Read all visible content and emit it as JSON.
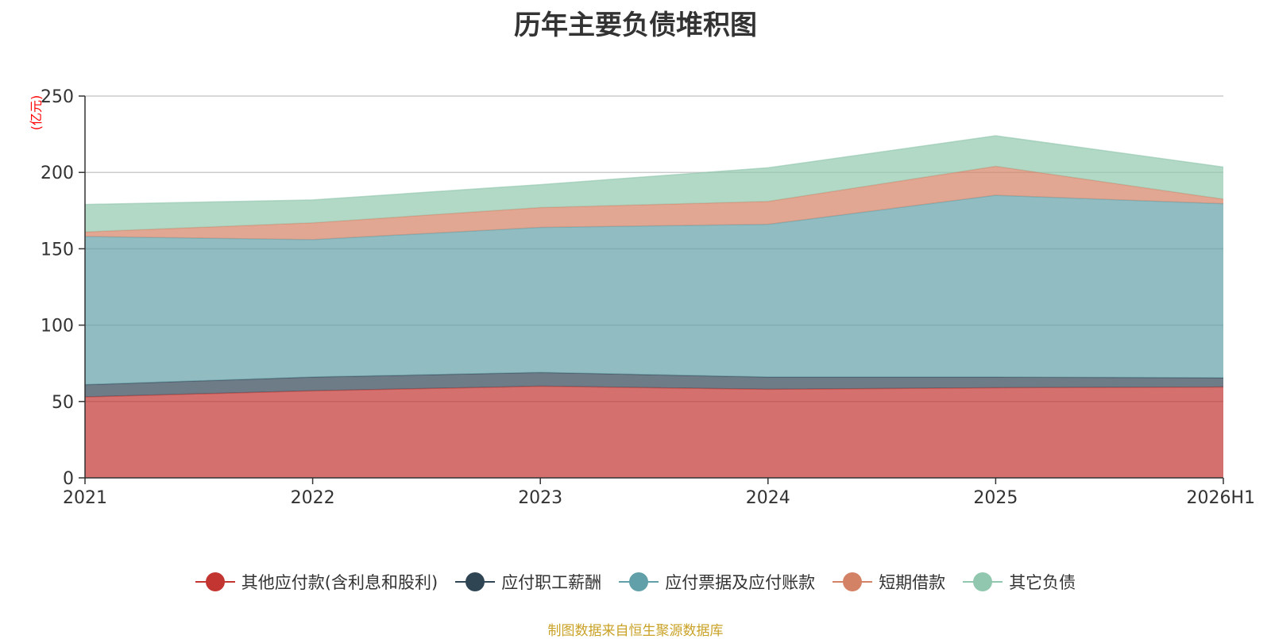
{
  "title": "历年主要负债堆积图",
  "source_note": "制图数据来自恒生聚源数据库",
  "chart_data": {
    "type": "area",
    "stacked": true,
    "title": "历年主要负债堆积图",
    "ylabel": "(亿元)",
    "xlabel": "",
    "ylim": [
      0,
      250
    ],
    "yticks": [
      0,
      50,
      100,
      150,
      200,
      250
    ],
    "grid": true,
    "legend_position": "bottom",
    "categories": [
      "2021",
      "2022",
      "2023",
      "2024",
      "2025",
      "2026H1"
    ],
    "series": [
      {
        "name": "其他应付款(含利息和股利)",
        "color": "#c23531",
        "values": [
          53,
          57,
          60,
          58,
          59,
          59.5
        ]
      },
      {
        "name": "应付职工薪酬",
        "color": "#2f4554",
        "values": [
          8,
          9,
          9,
          8,
          7,
          6
        ]
      },
      {
        "name": "应付票据及应付账款",
        "color": "#61a0a8",
        "values": [
          97,
          90,
          95,
          100,
          119,
          114
        ]
      },
      {
        "name": "短期借款",
        "color": "#d48265",
        "values": [
          3,
          11,
          13,
          15,
          19,
          3
        ]
      },
      {
        "name": "其它负债",
        "color": "#91c7ae",
        "values": [
          18,
          15,
          15,
          22,
          20,
          21
        ]
      }
    ]
  }
}
